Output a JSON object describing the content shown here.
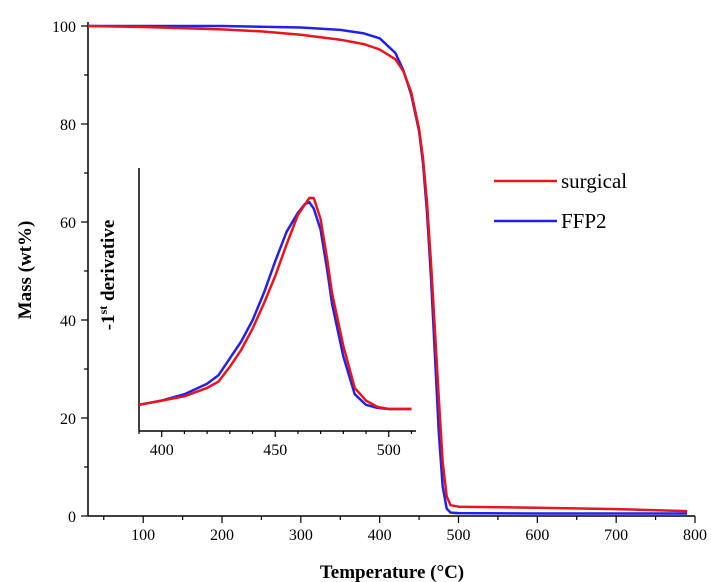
{
  "chart_data": [
    {
      "type": "line",
      "xlabel": "Temperature (°C)",
      "ylabel": "Mass (wt%)",
      "xlim": [
        30,
        800
      ],
      "ylim": [
        0,
        100
      ],
      "xticks": [
        100,
        200,
        300,
        400,
        500,
        600,
        700,
        800
      ],
      "yticks": [
        0,
        20,
        40,
        60,
        80,
        100
      ],
      "legend": "center-right",
      "grid": false,
      "series": [
        {
          "name": "surgical",
          "color": "#e8141e",
          "x": [
            30,
            100,
            200,
            250,
            300,
            350,
            380,
            400,
            420,
            430,
            440,
            450,
            455,
            460,
            465,
            470,
            475,
            480,
            485,
            490,
            500,
            600,
            700,
            790
          ],
          "y": [
            100,
            99.8,
            99.3,
            98.9,
            98.2,
            97.2,
            96.3,
            95.2,
            93.2,
            90.8,
            86.5,
            79,
            73,
            64,
            52,
            38,
            24,
            11,
            4,
            2.2,
            1.9,
            1.7,
            1.4,
            1.0
          ]
        },
        {
          "name": "FFP2",
          "color": "#2222e6",
          "x": [
            30,
            100,
            200,
            300,
            350,
            380,
            400,
            420,
            430,
            440,
            450,
            455,
            460,
            465,
            470,
            475,
            480,
            485,
            490,
            500,
            600,
            700,
            790
          ],
          "y": [
            100,
            100,
            100,
            99.7,
            99.2,
            98.5,
            97.5,
            94.5,
            91,
            86,
            78.5,
            72,
            62,
            49,
            33,
            17,
            6,
            1.5,
            0.7,
            0.6,
            0.5,
            0.5,
            0.5
          ]
        }
      ]
    },
    {
      "type": "line",
      "ylabel": "-1st derivative",
      "xlim": [
        390,
        512
      ],
      "xticks": [
        400,
        450,
        500
      ],
      "series": [
        {
          "color": "#e8141e",
          "x": [
            390,
            400,
            410,
            420,
            425,
            430,
            435,
            440,
            445,
            450,
            455,
            460,
            465,
            467,
            470,
            473,
            475,
            480,
            485,
            490,
            495,
            500,
            510
          ],
          "y": [
            0.02,
            0.04,
            0.06,
            0.1,
            0.13,
            0.2,
            0.28,
            0.38,
            0.5,
            0.63,
            0.78,
            0.92,
            1.0,
            1.0,
            0.9,
            0.7,
            0.55,
            0.3,
            0.1,
            0.04,
            0.01,
            0,
            0
          ]
        },
        {
          "color": "#2222e6",
          "x": [
            390,
            400,
            410,
            420,
            425,
            430,
            435,
            440,
            445,
            450,
            455,
            460,
            463,
            465,
            467,
            470,
            473,
            475,
            480,
            485,
            490,
            495,
            500,
            510
          ],
          "y": [
            0.02,
            0.04,
            0.07,
            0.12,
            0.16,
            0.24,
            0.32,
            0.42,
            0.55,
            0.7,
            0.84,
            0.93,
            0.97,
            0.98,
            0.95,
            0.85,
            0.65,
            0.5,
            0.25,
            0.07,
            0.02,
            0.005,
            0,
            0
          ]
        }
      ]
    }
  ]
}
